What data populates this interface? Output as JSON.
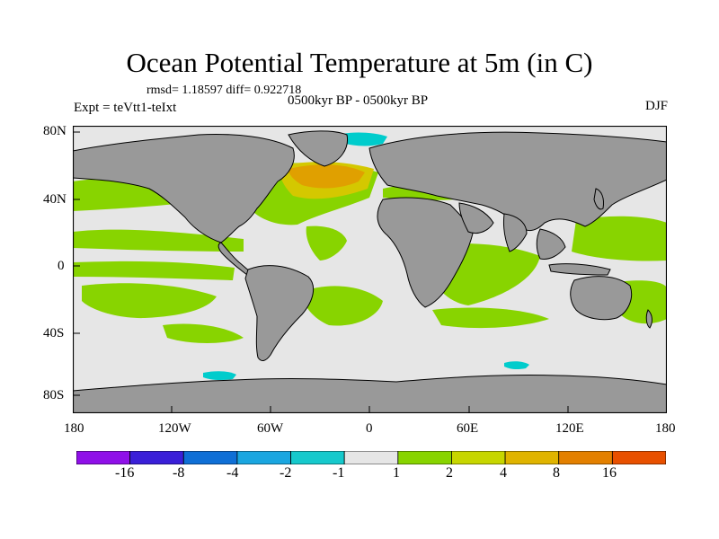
{
  "figure": {
    "title": "Ocean Potential Temperature at 5m (in C)",
    "stats_line": "rmsd= 1.18597 diff= 0.922718",
    "experiment": "Expt = teVtt1-teIxt",
    "period": "0500kyr BP - 0500kyr BP",
    "season": "DJF"
  },
  "map": {
    "lat_labels": [
      "80N",
      "40N",
      "0",
      "40S",
      "80S"
    ],
    "lon_labels": [
      "180",
      "120W",
      "60W",
      "0",
      "60E",
      "120E",
      "180"
    ],
    "colors": {
      "land": "#999999",
      "ocean_neutral": "#e6e6e6",
      "green": "#88d400",
      "yellow": "#d4c800",
      "orange": "#e0a000",
      "cyan": "#00cccc"
    }
  },
  "colorbar": {
    "colors": [
      "#8f10e8",
      "#3a1fd8",
      "#0f6fd6",
      "#1aa6e0",
      "#16c9cc",
      "#e6e6e6",
      "#88d400",
      "#c7d600",
      "#e0b400",
      "#e38000",
      "#e85000"
    ],
    "tick_labels": [
      "-16",
      "-8",
      "-4",
      "-2",
      "-1",
      "1",
      "2",
      "4",
      "8",
      "16"
    ]
  }
}
